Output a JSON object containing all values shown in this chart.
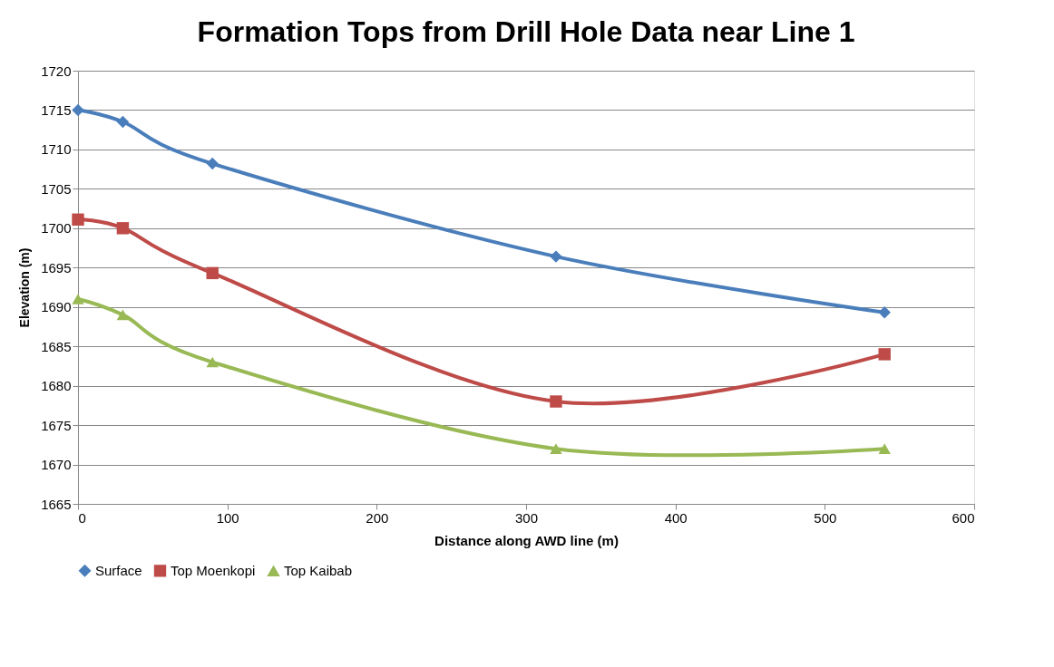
{
  "chart_data": {
    "type": "line",
    "title": "Formation Tops from Drill Hole Data near Line 1",
    "xlabel": "Distance along AWD line (m)",
    "ylabel": "Elevation  (m)",
    "x": [
      0,
      30,
      90,
      320,
      540
    ],
    "series": [
      {
        "name": "Surface",
        "color": "#4a7ebb",
        "marker": "diamond",
        "values": [
          1715.0,
          1713.5,
          1708.2,
          1696.4,
          1689.3
        ]
      },
      {
        "name": "Top Moenkopi",
        "color": "#be4b48",
        "marker": "square",
        "values": [
          1701.1,
          1700.0,
          1694.3,
          1678.0,
          1684.0
        ]
      },
      {
        "name": "Top Kaibab",
        "color": "#98b954",
        "marker": "triangle",
        "values": [
          1691.0,
          1689.0,
          1683.0,
          1672.0,
          1672.0
        ]
      }
    ],
    "xlim": [
      0,
      600
    ],
    "xticks": [
      0,
      100,
      200,
      300,
      400,
      500,
      600
    ],
    "ylim": [
      1665,
      1720
    ],
    "yticks": [
      1665,
      1670,
      1675,
      1680,
      1685,
      1690,
      1695,
      1700,
      1705,
      1710,
      1715,
      1720
    ],
    "grid": "y",
    "legend": "bottom",
    "line_style": "solid"
  }
}
